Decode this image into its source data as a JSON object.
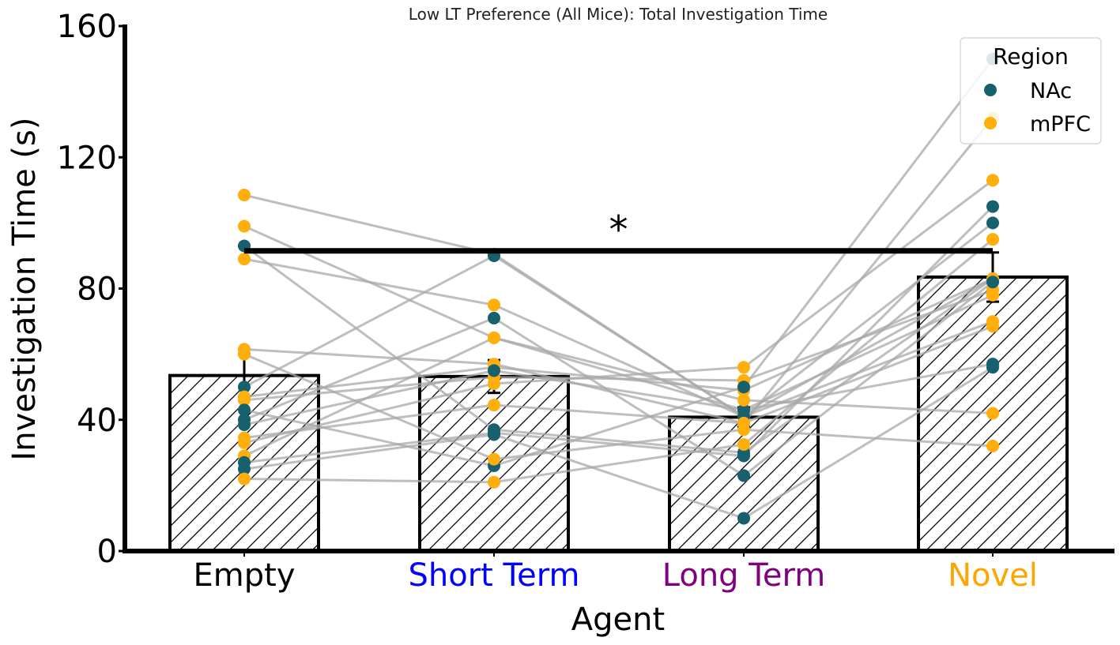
{
  "chart_data": {
    "type": "bar",
    "title": "Low LT Preference (All Mice): Total Investigation Time",
    "xlabel": "Agent",
    "ylabel": "Investigation Time (s)",
    "ylim": [
      0,
      160
    ],
    "yticks": [
      "0",
      "40",
      "80",
      "120",
      "160"
    ],
    "categories": [
      "Empty",
      "Short Term",
      "Long Term",
      "Novel"
    ],
    "category_colors": [
      "#000000",
      "#0000ff",
      "#800080",
      "#ffa500"
    ],
    "bar_values": [
      53.5,
      53.2,
      40.8,
      83.5
    ],
    "error_bars": [
      6.5,
      5.0,
      3.0,
      7.5
    ],
    "significance": {
      "label": "*",
      "from": "Empty",
      "to": "Novel",
      "y": 91.5
    },
    "legend": {
      "title": "Region",
      "position": "top-right",
      "entries": [
        {
          "name": "NAc",
          "color": "#17606d"
        },
        {
          "name": "mPFC",
          "color": "#ffae0b"
        }
      ]
    },
    "mice": [
      {
        "region": "mPFC",
        "values": [
          108.5,
          90.5,
          41,
          83
        ]
      },
      {
        "region": "mPFC",
        "values": [
          99,
          65,
          43,
          78
        ]
      },
      {
        "region": "NAc",
        "values": [
          93,
          37,
          30,
          83
        ]
      },
      {
        "region": "mPFC",
        "values": [
          89,
          75,
          41,
          70
        ]
      },
      {
        "region": "mPFC",
        "values": [
          61.5,
          57,
          39,
          132
        ]
      },
      {
        "region": "NAc",
        "values": [
          50,
          90,
          41,
          100
        ]
      },
      {
        "region": "mPFC",
        "values": [
          47,
          56,
          49,
          83
        ]
      },
      {
        "region": "mPFC",
        "values": [
          46,
          53,
          52,
          79.5
        ]
      },
      {
        "region": "NAc",
        "values": [
          40,
          71,
          23,
          82
        ]
      },
      {
        "region": "NAc",
        "values": [
          38.5,
          55,
          43,
          57
        ]
      },
      {
        "region": "mPFC",
        "values": [
          34.5,
          44.5,
          39,
          68.5
        ]
      },
      {
        "region": "mPFC",
        "values": [
          33,
          51,
          56,
          113
        ]
      },
      {
        "region": "mPFC",
        "values": [
          29,
          65,
          46,
          42
        ]
      },
      {
        "region": "NAc",
        "values": [
          27,
          36,
          29,
          105
        ]
      },
      {
        "region": "NAc",
        "values": [
          25,
          35.5,
          10,
          56
        ]
      },
      {
        "region": "mPFC",
        "values": [
          22,
          21,
          32.5,
          95
        ]
      },
      {
        "region": "NAc",
        "values": [
          43,
          26,
          50,
          150
        ]
      },
      {
        "region": "mPFC",
        "values": [
          60,
          28,
          37,
          32
        ]
      }
    ]
  }
}
